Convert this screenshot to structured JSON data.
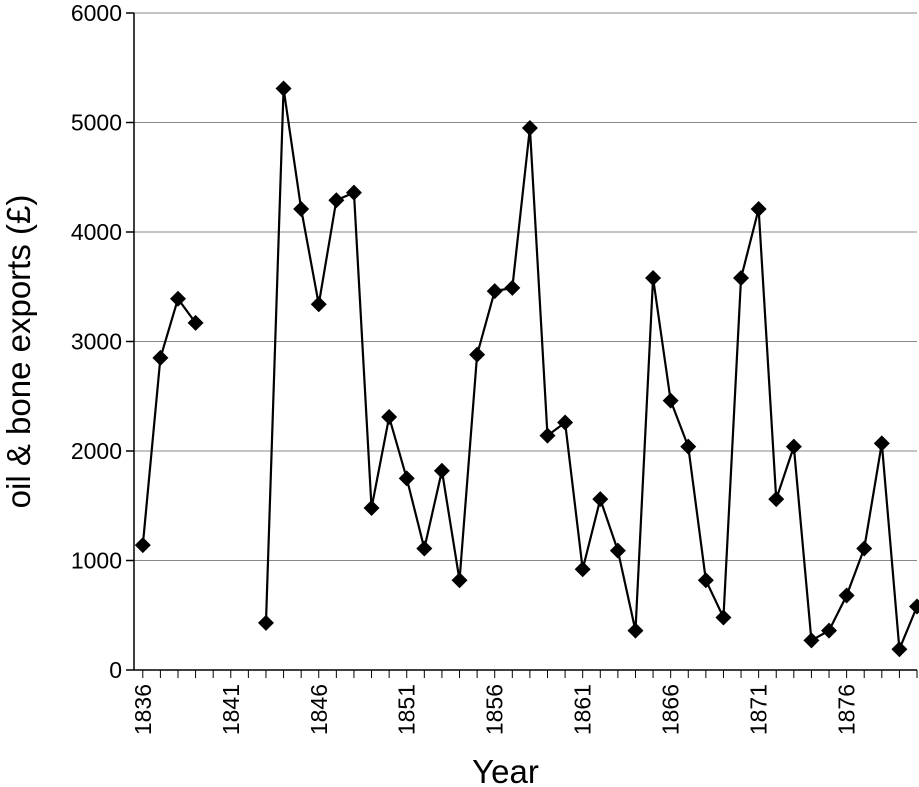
{
  "chart_data": {
    "type": "line",
    "xlabel": "Year",
    "ylabel": "oil & bone exports (£)",
    "ylim": [
      0,
      6000
    ],
    "yticks": [
      0,
      1000,
      2000,
      3000,
      4000,
      5000,
      6000
    ],
    "xlim": [
      1835.5,
      1880
    ],
    "xticks": [
      1836,
      1841,
      1846,
      1851,
      1856,
      1861,
      1866,
      1871,
      1876
    ],
    "grid": "horizontal",
    "marker": "diamond",
    "series": [
      {
        "x": [
          1836,
          1837,
          1838,
          1839,
          1840,
          1841,
          1842,
          1843,
          1844,
          1845,
          1846,
          1847,
          1848,
          1849,
          1850,
          1851,
          1852,
          1853,
          1854,
          1855,
          1856,
          1857,
          1858,
          1859,
          1860,
          1861,
          1862,
          1863,
          1864,
          1865,
          1866,
          1867,
          1868,
          1869,
          1870,
          1871,
          1872,
          1873,
          1874,
          1875,
          1876,
          1877,
          1878,
          1879,
          1880
        ],
        "values": [
          1140,
          2850,
          3390,
          3170,
          null,
          null,
          null,
          430,
          5310,
          4210,
          3340,
          4290,
          4360,
          1480,
          2310,
          1750,
          1110,
          1820,
          820,
          2880,
          3460,
          3490,
          4950,
          2140,
          2260,
          920,
          1560,
          1090,
          360,
          3580,
          2460,
          2040,
          820,
          480,
          3580,
          4210,
          1560,
          2040,
          270,
          360,
          680,
          1110,
          2070,
          190,
          580
        ]
      }
    ]
  }
}
